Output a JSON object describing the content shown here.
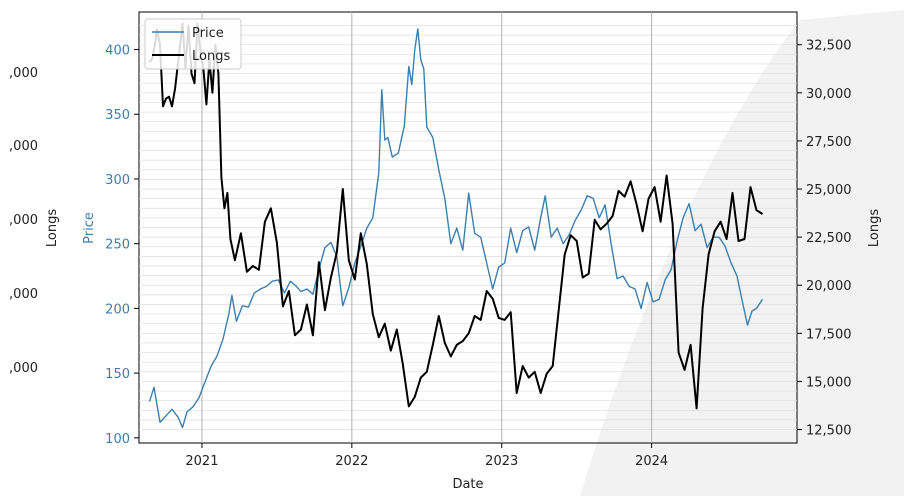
{
  "chart_data": {
    "type": "line",
    "xlabel": "Date",
    "ylabel_left": "Price",
    "ylabel_right": "Longs",
    "ylabel_far_left": "Longs",
    "x_ticks": [
      "2021",
      "2022",
      "2023",
      "2024"
    ],
    "x_range": [
      2020.58,
      2024.97
    ],
    "y_left_ticks": [
      "100",
      "150",
      "200",
      "250",
      "300",
      "350",
      "400"
    ],
    "y_left_range": [
      96,
      429
    ],
    "y_right_ticks": [
      "12,500",
      "15,000",
      "17,500",
      "20,000",
      "22,500",
      "25,000",
      "27,500",
      "30,000",
      "32,500"
    ],
    "y_right_range": [
      11800,
      34200
    ],
    "far_left_ticks": [
      ",000",
      ",000",
      ",000",
      ",000",
      ",000"
    ],
    "legend": {
      "position": "top-left"
    },
    "grid": true,
    "series": [
      {
        "name": "Price",
        "axis": "left",
        "color": "#3b7fb0",
        "points": [
          [
            2020.65,
            128
          ],
          [
            2020.68,
            139
          ],
          [
            2020.72,
            112
          ],
          [
            2020.76,
            117
          ],
          [
            2020.8,
            122
          ],
          [
            2020.84,
            116
          ],
          [
            2020.87,
            108
          ],
          [
            2020.9,
            120
          ],
          [
            2020.94,
            124
          ],
          [
            2020.98,
            131
          ],
          [
            2021.02,
            143
          ],
          [
            2021.06,
            155
          ],
          [
            2021.1,
            163
          ],
          [
            2021.14,
            176
          ],
          [
            2021.18,
            196
          ],
          [
            2021.2,
            210
          ],
          [
            2021.23,
            190
          ],
          [
            2021.27,
            202
          ],
          [
            2021.31,
            201
          ],
          [
            2021.35,
            212
          ],
          [
            2021.39,
            215
          ],
          [
            2021.43,
            217
          ],
          [
            2021.47,
            221
          ],
          [
            2021.51,
            222
          ],
          [
            2021.55,
            212
          ],
          [
            2021.59,
            221
          ],
          [
            2021.63,
            217
          ],
          [
            2021.66,
            213
          ],
          [
            2021.7,
            215
          ],
          [
            2021.74,
            211
          ],
          [
            2021.78,
            230
          ],
          [
            2021.82,
            247
          ],
          [
            2021.86,
            251
          ],
          [
            2021.9,
            240
          ],
          [
            2021.94,
            202
          ],
          [
            2021.98,
            216
          ],
          [
            2022.02,
            235
          ],
          [
            2022.06,
            248
          ],
          [
            2022.1,
            262
          ],
          [
            2022.14,
            270
          ],
          [
            2022.18,
            305
          ],
          [
            2022.2,
            369
          ],
          [
            2022.22,
            330
          ],
          [
            2022.24,
            332
          ],
          [
            2022.27,
            317
          ],
          [
            2022.31,
            320
          ],
          [
            2022.35,
            341
          ],
          [
            2022.38,
            387
          ],
          [
            2022.4,
            373
          ],
          [
            2022.42,
            400
          ],
          [
            2022.44,
            416
          ],
          [
            2022.46,
            392
          ],
          [
            2022.48,
            385
          ],
          [
            2022.5,
            340
          ],
          [
            2022.54,
            332
          ],
          [
            2022.58,
            307
          ],
          [
            2022.62,
            285
          ],
          [
            2022.66,
            250
          ],
          [
            2022.7,
            262
          ],
          [
            2022.74,
            245
          ],
          [
            2022.78,
            289
          ],
          [
            2022.82,
            258
          ],
          [
            2022.86,
            255
          ],
          [
            2022.9,
            235
          ],
          [
            2022.94,
            215
          ],
          [
            2022.98,
            232
          ],
          [
            2023.02,
            235
          ],
          [
            2023.06,
            262
          ],
          [
            2023.1,
            243
          ],
          [
            2023.14,
            260
          ],
          [
            2023.18,
            263
          ],
          [
            2023.22,
            245
          ],
          [
            2023.26,
            270
          ],
          [
            2023.29,
            287
          ],
          [
            2023.33,
            255
          ],
          [
            2023.37,
            262
          ],
          [
            2023.41,
            250
          ],
          [
            2023.45,
            257
          ],
          [
            2023.49,
            268
          ],
          [
            2023.53,
            276
          ],
          [
            2023.57,
            287
          ],
          [
            2023.61,
            285
          ],
          [
            2023.65,
            270
          ],
          [
            2023.69,
            280
          ],
          [
            2023.73,
            250
          ],
          [
            2023.77,
            223
          ],
          [
            2023.81,
            225
          ],
          [
            2023.85,
            217
          ],
          [
            2023.89,
            215
          ],
          [
            2023.93,
            200
          ],
          [
            2023.97,
            220
          ],
          [
            2024.01,
            205
          ],
          [
            2024.05,
            207
          ],
          [
            2024.09,
            222
          ],
          [
            2024.13,
            230
          ],
          [
            2024.17,
            252
          ],
          [
            2024.21,
            270
          ],
          [
            2024.25,
            281
          ],
          [
            2024.29,
            260
          ],
          [
            2024.33,
            265
          ],
          [
            2024.37,
            247
          ],
          [
            2024.41,
            255
          ],
          [
            2024.45,
            255
          ],
          [
            2024.49,
            248
          ],
          [
            2024.53,
            235
          ],
          [
            2024.57,
            225
          ],
          [
            2024.61,
            203
          ],
          [
            2024.64,
            187
          ],
          [
            2024.67,
            198
          ],
          [
            2024.7,
            200
          ],
          [
            2024.74,
            207
          ]
        ]
      },
      {
        "name": "Longs",
        "axis": "right",
        "color": "#000000",
        "points": [
          [
            2020.65,
            31600
          ],
          [
            2020.67,
            31800
          ],
          [
            2020.69,
            32700
          ],
          [
            2020.7,
            33300
          ],
          [
            2020.72,
            32500
          ],
          [
            2020.74,
            29300
          ],
          [
            2020.76,
            29700
          ],
          [
            2020.78,
            29800
          ],
          [
            2020.8,
            29300
          ],
          [
            2020.82,
            30200
          ],
          [
            2020.85,
            32200
          ],
          [
            2020.87,
            33600
          ],
          [
            2020.89,
            31300
          ],
          [
            2020.91,
            33500
          ],
          [
            2020.93,
            31000
          ],
          [
            2020.95,
            30500
          ],
          [
            2020.97,
            33600
          ],
          [
            2020.99,
            32100
          ],
          [
            2021.01,
            31200
          ],
          [
            2021.03,
            29400
          ],
          [
            2021.05,
            31700
          ],
          [
            2021.07,
            30000
          ],
          [
            2021.09,
            32500
          ],
          [
            2021.11,
            31000
          ],
          [
            2021.13,
            25600
          ],
          [
            2021.15,
            24000
          ],
          [
            2021.17,
            24800
          ],
          [
            2021.19,
            22400
          ],
          [
            2021.22,
            21300
          ],
          [
            2021.26,
            22700
          ],
          [
            2021.3,
            20700
          ],
          [
            2021.34,
            21000
          ],
          [
            2021.38,
            20800
          ],
          [
            2021.42,
            23300
          ],
          [
            2021.46,
            24000
          ],
          [
            2021.5,
            22200
          ],
          [
            2021.54,
            18900
          ],
          [
            2021.58,
            19700
          ],
          [
            2021.62,
            17400
          ],
          [
            2021.66,
            17700
          ],
          [
            2021.7,
            19000
          ],
          [
            2021.74,
            17400
          ],
          [
            2021.78,
            21200
          ],
          [
            2021.82,
            18700
          ],
          [
            2021.86,
            20400
          ],
          [
            2021.9,
            21700
          ],
          [
            2021.94,
            25000
          ],
          [
            2021.98,
            21300
          ],
          [
            2022.02,
            20300
          ],
          [
            2022.06,
            22700
          ],
          [
            2022.1,
            21100
          ],
          [
            2022.14,
            18500
          ],
          [
            2022.18,
            17300
          ],
          [
            2022.22,
            18000
          ],
          [
            2022.26,
            16600
          ],
          [
            2022.3,
            17700
          ],
          [
            2022.34,
            15900
          ],
          [
            2022.38,
            13700
          ],
          [
            2022.42,
            14200
          ],
          [
            2022.46,
            15200
          ],
          [
            2022.5,
            15500
          ],
          [
            2022.54,
            16900
          ],
          [
            2022.58,
            18400
          ],
          [
            2022.62,
            17000
          ],
          [
            2022.66,
            16300
          ],
          [
            2022.7,
            16900
          ],
          [
            2022.74,
            17100
          ],
          [
            2022.78,
            17500
          ],
          [
            2022.82,
            18400
          ],
          [
            2022.86,
            18200
          ],
          [
            2022.9,
            19700
          ],
          [
            2022.94,
            19300
          ],
          [
            2022.98,
            18300
          ],
          [
            2023.02,
            18200
          ],
          [
            2023.06,
            18600
          ],
          [
            2023.1,
            14400
          ],
          [
            2023.14,
            15800
          ],
          [
            2023.18,
            15200
          ],
          [
            2023.22,
            15500
          ],
          [
            2023.26,
            14400
          ],
          [
            2023.3,
            15400
          ],
          [
            2023.34,
            15800
          ],
          [
            2023.38,
            18700
          ],
          [
            2023.42,
            21600
          ],
          [
            2023.46,
            22600
          ],
          [
            2023.5,
            22300
          ],
          [
            2023.54,
            20400
          ],
          [
            2023.58,
            20600
          ],
          [
            2023.62,
            23400
          ],
          [
            2023.66,
            22900
          ],
          [
            2023.7,
            23200
          ],
          [
            2023.74,
            23600
          ],
          [
            2023.78,
            24900
          ],
          [
            2023.82,
            24600
          ],
          [
            2023.86,
            25400
          ],
          [
            2023.9,
            24200
          ],
          [
            2023.94,
            22800
          ],
          [
            2023.98,
            24500
          ],
          [
            2024.02,
            25100
          ],
          [
            2024.06,
            23300
          ],
          [
            2024.1,
            25700
          ],
          [
            2024.14,
            23200
          ],
          [
            2024.18,
            16500
          ],
          [
            2024.22,
            15600
          ],
          [
            2024.26,
            16900
          ],
          [
            2024.3,
            13600
          ],
          [
            2024.34,
            18800
          ],
          [
            2024.38,
            21600
          ],
          [
            2024.42,
            22800
          ],
          [
            2024.46,
            23300
          ],
          [
            2024.5,
            22400
          ],
          [
            2024.54,
            24800
          ],
          [
            2024.58,
            22300
          ],
          [
            2024.62,
            22400
          ],
          [
            2024.66,
            25100
          ],
          [
            2024.7,
            23900
          ],
          [
            2024.74,
            23700
          ]
        ]
      }
    ]
  }
}
